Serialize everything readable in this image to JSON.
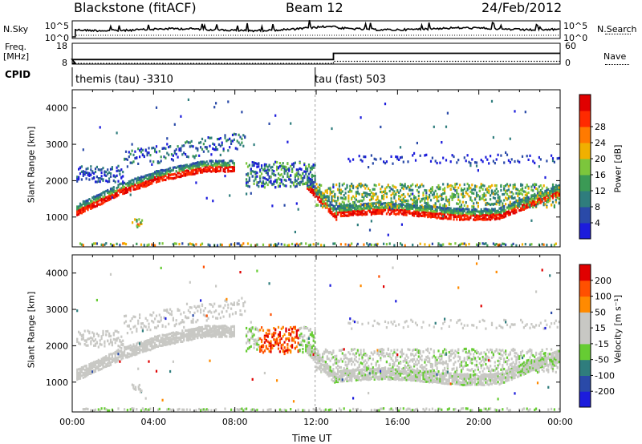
{
  "header": {
    "title": "Blackstone (fitACF)",
    "beam": "Beam 12",
    "date": "24/Feb/2012"
  },
  "labels": {
    "n_sky": "N.Sky",
    "n_search": "N.Search",
    "freq_line1": "Freq.",
    "freq_line2": "[MHz]",
    "nave": "Nave",
    "cpid": "CPID",
    "cpid_mode_1": "themis (tau) -3310",
    "cpid_mode_2": "tau (fast) 503",
    "time_axis": "Time UT",
    "range_axis_1": "Slant Range [km]",
    "range_axis_2": "Slant Range [km]",
    "power_label": "Power [dB]",
    "velocity_label": "Velocity [m s⁻¹]"
  },
  "colors": {
    "power_scale": [
      "#1c1cdc",
      "#2a4aa8",
      "#2f7d7d",
      "#3b9a55",
      "#7cc63c",
      "#f0b000",
      "#ff7a00",
      "#ff2a00",
      "#e00000"
    ],
    "velocity_scale": [
      "#1c1cdc",
      "#2a4aa8",
      "#2f7d7d",
      "#66cc33",
      "#c8c8c4",
      "#c8c8c4",
      "#ff8a00",
      "#ff5000",
      "#e00000"
    ]
  },
  "chart_data": [
    {
      "type": "line",
      "name": "noise",
      "x_range": [
        "00:00",
        "24:00"
      ],
      "y_ticks_left": [
        "10^5",
        "10^0"
      ],
      "y_ticks_right": [
        "10^5",
        "10^0"
      ],
      "series": [
        {
          "name": "N.Sky",
          "style": "solid"
        },
        {
          "name": "N.Search",
          "style": "dotted"
        }
      ]
    },
    {
      "type": "line",
      "name": "frequency",
      "y_ticks_left": [
        "18",
        "8"
      ],
      "y_ticks_right": [
        "60",
        "0"
      ],
      "series": [
        {
          "name": "Freq.",
          "x_hours": [
            0,
            0.2,
            12.85,
            12.85,
            24
          ],
          "values": [
            10.2,
            10.2,
            10.2,
            13.2,
            13.2
          ]
        },
        {
          "name": "Nave",
          "x_hours": [
            0,
            0.2,
            12.85,
            12.85,
            24
          ],
          "values": [
            2,
            2,
            2,
            8,
            8
          ]
        }
      ]
    },
    {
      "type": "heatmap",
      "name": "power",
      "xlabel": "Time UT",
      "ylabel": "Slant Range [km]",
      "xlim": [
        0,
        24
      ],
      "ylim": [
        180,
        4500
      ],
      "x_tick_labels": [
        "00:00",
        "04:00",
        "08:00",
        "12:00",
        "16:00",
        "20:00",
        "00:00"
      ],
      "y_tick_labels": [
        "1000",
        "2000",
        "3000",
        "4000"
      ],
      "colorbar_label": "Power [dB]",
      "colorbar_ticks": [
        "4",
        "8",
        "12",
        "16",
        "20",
        "24",
        "28"
      ],
      "cpid_change_hour": 11.95
    },
    {
      "type": "heatmap",
      "name": "velocity",
      "xlabel": "Time UT",
      "ylabel": "Slant Range [km]",
      "xlim": [
        0,
        24
      ],
      "ylim": [
        180,
        4500
      ],
      "x_tick_labels": [
        "00:00",
        "04:00",
        "08:00",
        "12:00",
        "16:00",
        "20:00",
        "00:00"
      ],
      "y_tick_labels": [
        "1000",
        "2000",
        "3000",
        "4000"
      ],
      "colorbar_label": "Velocity [m s⁻¹]",
      "colorbar_ticks": [
        "200",
        "100",
        "50",
        "15",
        "-15",
        "-50",
        "-100",
        "-200"
      ]
    }
  ]
}
